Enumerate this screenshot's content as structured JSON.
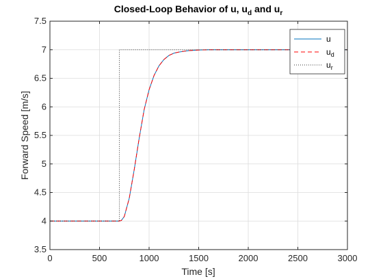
{
  "chart_data": {
    "type": "line",
    "title_parts": [
      "Closed-Loop Behavior of u, u",
      "d",
      " and u",
      "r"
    ],
    "xlabel": "Time [s]",
    "ylabel": "Forward Speed [m/s]",
    "xlim": [
      0,
      3000
    ],
    "ylim": [
      3.5,
      7.5
    ],
    "xticks": [
      0,
      500,
      1000,
      1500,
      2000,
      2500,
      3000
    ],
    "yticks": [
      3.5,
      4,
      4.5,
      5,
      5.5,
      6,
      6.5,
      7,
      7.5
    ],
    "xtick_labels": [
      "0",
      "500",
      "1000",
      "1500",
      "2000",
      "2500",
      "3000"
    ],
    "ytick_labels": [
      "3.5",
      "4",
      "4.5",
      "5",
      "5.5",
      "6",
      "6.5",
      "7",
      "7.5"
    ],
    "grid": true,
    "legend_position": "top-right",
    "series": [
      {
        "name": "u",
        "color": "#0072BD",
        "style": "solid",
        "x": [
          0,
          700,
          720,
          750,
          800,
          850,
          900,
          950,
          1000,
          1050,
          1100,
          1150,
          1200,
          1250,
          1300,
          1400,
          1500,
          1600,
          1700,
          1800,
          1900,
          2000,
          2500,
          3000
        ],
        "y": [
          4.0,
          4.0,
          4.01,
          4.08,
          4.4,
          4.9,
          5.45,
          5.95,
          6.3,
          6.55,
          6.72,
          6.83,
          6.9,
          6.94,
          6.96,
          6.985,
          6.995,
          7.0,
          7.0,
          7.0,
          7.0,
          7.0,
          7.0,
          7.0
        ]
      },
      {
        "name": "u_d",
        "label_main": "u",
        "label_sub": "d",
        "color": "#ff0000",
        "style": "dashed",
        "x": [
          0,
          700,
          720,
          750,
          800,
          850,
          900,
          950,
          1000,
          1050,
          1100,
          1150,
          1200,
          1250,
          1300,
          1400,
          1500,
          1600,
          1700,
          1800,
          1900,
          2000,
          2500,
          3000
        ],
        "y": [
          4.0,
          4.0,
          4.01,
          4.08,
          4.4,
          4.9,
          5.45,
          5.95,
          6.3,
          6.55,
          6.72,
          6.83,
          6.9,
          6.94,
          6.96,
          6.985,
          6.995,
          7.0,
          7.0,
          7.0,
          7.0,
          7.0,
          7.0,
          7.0
        ]
      },
      {
        "name": "u_r",
        "label_main": "u",
        "label_sub": "r",
        "color": "#333333",
        "style": "dotted",
        "x": [
          0,
          700,
          700,
          3000
        ],
        "y": [
          4.0,
          4.0,
          7.0,
          7.0
        ]
      }
    ]
  }
}
